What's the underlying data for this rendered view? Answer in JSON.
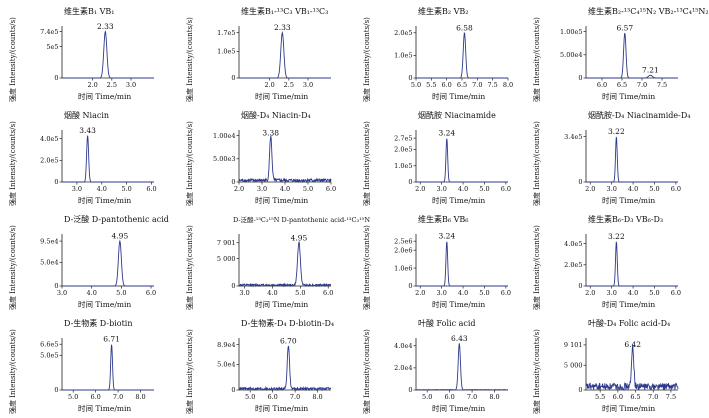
{
  "figure": {
    "ylabel": "强度 Intensity/(counts/s)",
    "xlabel": "时间 Time/min"
  },
  "chart_data": [
    {
      "type": "line",
      "title": "维生素B₁ VB₁",
      "xlim": [
        1.2,
        3.6
      ],
      "ylim": [
        0,
        8.3
      ],
      "y_scale_label": "",
      "x_ticks": [
        {
          "v": 2.0,
          "t": "2.0"
        },
        {
          "v": 2.5,
          "t": "2.5"
        },
        {
          "v": 3.0,
          "t": "3.0"
        }
      ],
      "y_ticks": [
        {
          "v": 0,
          "t": "0"
        },
        {
          "v": 5,
          "t": "5e5"
        },
        {
          "v": 7.4,
          "t": "7.4e5"
        }
      ],
      "peaks": [
        {
          "x": 2.33,
          "label": "2.33",
          "height": 7.4,
          "width": 0.04
        }
      ],
      "noise": 0
    },
    {
      "type": "line",
      "title": "维生素B₁-¹³C₃ VB₁-¹³C₃",
      "xlim": [
        1.2,
        3.6
      ],
      "ylim": [
        0,
        1.95
      ],
      "x_ticks": [
        {
          "v": 2.0,
          "t": "2.0"
        },
        {
          "v": 2.5,
          "t": "2.5"
        },
        {
          "v": 3.0,
          "t": "3.0"
        }
      ],
      "y_ticks": [
        {
          "v": 0,
          "t": "0"
        },
        {
          "v": 1.0,
          "t": "1.0e5"
        },
        {
          "v": 1.7,
          "t": "1.7e5"
        }
      ],
      "peaks": [
        {
          "x": 2.33,
          "label": "2.33",
          "height": 1.7,
          "width": 0.04
        }
      ],
      "noise": 0
    },
    {
      "type": "line",
      "title": "维生素B₂ VB₂",
      "xlim": [
        5.0,
        8.0
      ],
      "ylim": [
        0,
        2.3
      ],
      "x_ticks": [
        {
          "v": 5.0,
          "t": "5.0"
        },
        {
          "v": 5.5,
          "t": "5.5"
        },
        {
          "v": 6.0,
          "t": "6.0"
        },
        {
          "v": 6.5,
          "t": "6.5"
        },
        {
          "v": 7.0,
          "t": "7.0"
        },
        {
          "v": 7.5,
          "t": "7.5"
        },
        {
          "v": 8.0,
          "t": "8.0"
        }
      ],
      "y_ticks": [
        {
          "v": 0,
          "t": "0"
        },
        {
          "v": 1.0,
          "t": "1.0e5"
        },
        {
          "v": 2.0,
          "t": "2.0e5"
        }
      ],
      "peaks": [
        {
          "x": 6.58,
          "label": "6.58",
          "height": 2.0,
          "width": 0.04
        }
      ],
      "noise": 0
    },
    {
      "type": "line",
      "title": "维生素B₂-¹³C₄¹⁵N₂ VB₂-¹³C₄¹⁵N₂",
      "xlim": [
        5.6,
        7.9
      ],
      "ylim": [
        0,
        1.12
      ],
      "x_ticks": [
        {
          "v": 6.0,
          "t": "6.0"
        },
        {
          "v": 6.5,
          "t": "6.5"
        },
        {
          "v": 7.0,
          "t": "7.0"
        },
        {
          "v": 7.5,
          "t": "7.5"
        }
      ],
      "y_ticks": [
        {
          "v": 0,
          "t": "0"
        },
        {
          "v": 0.5,
          "t": "5.00e4"
        },
        {
          "v": 1.0,
          "t": "1.00e5"
        }
      ],
      "peaks": [
        {
          "x": 6.57,
          "label": "6.57",
          "height": 0.97,
          "width": 0.03
        },
        {
          "x": 7.21,
          "label": "7.21",
          "height": 0.06,
          "width": 0.05
        }
      ],
      "noise": 0
    },
    {
      "type": "line",
      "title": "烟酸 Niacin",
      "xlim": [
        2.4,
        6.1
      ],
      "ylim": [
        0,
        4.8
      ],
      "x_ticks": [
        {
          "v": 3.0,
          "t": "3.0"
        },
        {
          "v": 4.0,
          "t": "4.0"
        },
        {
          "v": 5.0,
          "t": "5.0"
        },
        {
          "v": 6.0,
          "t": "6.0"
        }
      ],
      "y_ticks": [
        {
          "v": 0,
          "t": "0"
        },
        {
          "v": 2.0,
          "t": "2.0e5"
        },
        {
          "v": 4.0,
          "t": "4.0e5"
        }
      ],
      "peaks": [
        {
          "x": 3.43,
          "label": "3.43",
          "height": 4.3,
          "width": 0.04
        }
      ],
      "noise": 0
    },
    {
      "type": "line",
      "title": "烟酸-D₄ Niacin-D₄",
      "xlim": [
        2.0,
        6.0
      ],
      "ylim": [
        0,
        1.12
      ],
      "x_ticks": [
        {
          "v": 2.0,
          "t": "2.0"
        },
        {
          "v": 3.0,
          "t": "3.0"
        },
        {
          "v": 4.0,
          "t": "4.0"
        },
        {
          "v": 5.0,
          "t": "5.0"
        },
        {
          "v": 6.0,
          "t": "6.0"
        }
      ],
      "y_ticks": [
        {
          "v": 0,
          "t": "0"
        },
        {
          "v": 0.5,
          "t": "5.00e3"
        },
        {
          "v": 1.0,
          "t": "1.00e4"
        }
      ],
      "peaks": [
        {
          "x": 3.38,
          "label": "3.38",
          "height": 0.95,
          "width": 0.05
        }
      ],
      "noise": 0.05
    },
    {
      "type": "line",
      "title": "烟酰胺 Niacinamide",
      "xlim": [
        1.8,
        6.1
      ],
      "ylim": [
        0,
        3.2
      ],
      "x_ticks": [
        {
          "v": 2.0,
          "t": "2.0"
        },
        {
          "v": 3.0,
          "t": "3.0"
        },
        {
          "v": 4.0,
          "t": "4.0"
        },
        {
          "v": 5.0,
          "t": "5.0"
        },
        {
          "v": 6.0,
          "t": "6.0"
        }
      ],
      "y_ticks": [
        {
          "v": 0,
          "t": "0"
        },
        {
          "v": 1.0,
          "t": "1.0e5"
        },
        {
          "v": 2.0,
          "t": "2.0e5"
        },
        {
          "v": 2.7,
          "t": "2.7e5"
        }
      ],
      "peaks": [
        {
          "x": 3.24,
          "label": "3.24",
          "height": 2.7,
          "width": 0.04
        }
      ],
      "noise": 0
    },
    {
      "type": "line",
      "title": "烟酰胺-D₄ Niacinamide-D₄",
      "xlim": [
        1.8,
        6.1
      ],
      "ylim": [
        0,
        3.9
      ],
      "x_ticks": [
        {
          "v": 2.0,
          "t": "2.0"
        },
        {
          "v": 3.0,
          "t": "3.0"
        },
        {
          "v": 4.0,
          "t": "4.0"
        },
        {
          "v": 5.0,
          "t": "5.0"
        },
        {
          "v": 6.0,
          "t": "6.0"
        }
      ],
      "y_ticks": [
        {
          "v": 0,
          "t": "0"
        },
        {
          "v": 3.4,
          "t": "3.4e5"
        }
      ],
      "peaks": [
        {
          "x": 3.22,
          "label": "3.22",
          "height": 3.4,
          "width": 0.04
        }
      ],
      "noise": 0
    },
    {
      "type": "line",
      "title": "D-泛酸 D-pantothenic acid",
      "xlim": [
        3.0,
        6.1
      ],
      "ylim": [
        0,
        11.0
      ],
      "x_ticks": [
        {
          "v": 3.0,
          "t": "3.0"
        },
        {
          "v": 4.0,
          "t": "4.0"
        },
        {
          "v": 5.0,
          "t": "5.0"
        },
        {
          "v": 6.0,
          "t": "6.0"
        }
      ],
      "y_ticks": [
        {
          "v": 0,
          "t": "0"
        },
        {
          "v": 5.0,
          "t": "5.0e4"
        },
        {
          "v": 9.5,
          "t": "9.5e4"
        }
      ],
      "peaks": [
        {
          "x": 4.95,
          "label": "4.95",
          "height": 9.5,
          "width": 0.05
        }
      ],
      "noise": 0
    },
    {
      "type": "line",
      "title": "D-泛酸-¹³C₃¹⁵N D-pantothenic acid-¹³C₃¹⁵N",
      "xlim": [
        2.8,
        6.1
      ],
      "ylim": [
        0,
        9.5
      ],
      "x_ticks": [
        {
          "v": 3.0,
          "t": "3.0"
        },
        {
          "v": 4.0,
          "t": "4.0"
        },
        {
          "v": 5.0,
          "t": "5.0"
        },
        {
          "v": 6.0,
          "t": "6.0"
        }
      ],
      "y_ticks": [
        {
          "v": 0,
          "t": "0"
        },
        {
          "v": 5.0,
          "t": "5 000"
        },
        {
          "v": 7.901,
          "t": "7 901"
        }
      ],
      "peaks": [
        {
          "x": 4.95,
          "label": "4.95",
          "height": 7.9,
          "width": 0.05
        }
      ],
      "noise": 0.25
    },
    {
      "type": "line",
      "title": "维生素B₆ VB₆",
      "xlim": [
        1.8,
        6.1
      ],
      "ylim": [
        0,
        2.9
      ],
      "x_ticks": [
        {
          "v": 2.0,
          "t": "2.0"
        },
        {
          "v": 3.0,
          "t": "3.0"
        },
        {
          "v": 4.0,
          "t": "4.0"
        },
        {
          "v": 5.0,
          "t": "5.0"
        },
        {
          "v": 6.0,
          "t": "6.0"
        }
      ],
      "y_ticks": [
        {
          "v": 0,
          "t": "0"
        },
        {
          "v": 1.0,
          "t": "1.0e6"
        },
        {
          "v": 2.0,
          "t": "2.0e6"
        },
        {
          "v": 2.5,
          "t": "2.5e6"
        }
      ],
      "peaks": [
        {
          "x": 3.24,
          "label": "3.24",
          "height": 2.5,
          "width": 0.04
        }
      ],
      "noise": 0
    },
    {
      "type": "line",
      "title": "维生素B₆-D₃ VB₆-D₃",
      "xlim": [
        1.8,
        6.1
      ],
      "ylim": [
        0,
        4.9
      ],
      "x_ticks": [
        {
          "v": 2.0,
          "t": "2.0"
        },
        {
          "v": 3.0,
          "t": "3.0"
        },
        {
          "v": 4.0,
          "t": "4.0"
        },
        {
          "v": 5.0,
          "t": "5.0"
        },
        {
          "v": 6.0,
          "t": "6.0"
        }
      ],
      "y_ticks": [
        {
          "v": 0,
          "t": "0"
        },
        {
          "v": 2.0,
          "t": "2.0e5"
        },
        {
          "v": 4.0,
          "t": "4.0e5"
        }
      ],
      "peaks": [
        {
          "x": 3.22,
          "label": "3.22",
          "height": 4.2,
          "width": 0.04
        }
      ],
      "noise": 0
    },
    {
      "type": "line",
      "title": "D-生物素 D-biotin",
      "xlim": [
        4.5,
        8.6
      ],
      "ylim": [
        0,
        7.5
      ],
      "x_ticks": [
        {
          "v": 5.0,
          "t": "5.0"
        },
        {
          "v": 6.0,
          "t": "6.0"
        },
        {
          "v": 7.0,
          "t": "7.0"
        },
        {
          "v": 8.0,
          "t": "8.0"
        }
      ],
      "y_ticks": [
        {
          "v": 0,
          "t": "0"
        },
        {
          "v": 5.0,
          "t": "5.0e5"
        },
        {
          "v": 6.6,
          "t": "6.6e5"
        }
      ],
      "peaks": [
        {
          "x": 6.71,
          "label": "6.71",
          "height": 6.6,
          "width": 0.04
        }
      ],
      "noise": 0
    },
    {
      "type": "line",
      "title": "D-生物素-D₄ D-biotin-D₄",
      "xlim": [
        4.5,
        8.6
      ],
      "ylim": [
        0,
        10.2
      ],
      "x_ticks": [
        {
          "v": 5.0,
          "t": "5.0"
        },
        {
          "v": 6.0,
          "t": "6.0"
        },
        {
          "v": 7.0,
          "t": "7.0"
        },
        {
          "v": 8.0,
          "t": "8.0"
        }
      ],
      "y_ticks": [
        {
          "v": 0,
          "t": "0"
        },
        {
          "v": 5.0,
          "t": "5.0e4"
        },
        {
          "v": 8.9,
          "t": "8.9e4"
        }
      ],
      "peaks": [
        {
          "x": 6.7,
          "label": "6.70",
          "height": 8.6,
          "width": 0.05
        }
      ],
      "noise": 0.35
    },
    {
      "type": "line",
      "title": "叶酸 Folic acid",
      "xlim": [
        4.5,
        8.6
      ],
      "ylim": [
        0,
        4.7
      ],
      "x_ticks": [
        {
          "v": 5.0,
          "t": "5.0"
        },
        {
          "v": 6.0,
          "t": "6.0"
        },
        {
          "v": 7.0,
          "t": "7.0"
        },
        {
          "v": 8.0,
          "t": "8.0"
        }
      ],
      "y_ticks": [
        {
          "v": 0,
          "t": "0"
        },
        {
          "v": 2.0,
          "t": "2.0e4"
        },
        {
          "v": 4.0,
          "t": "4.0e4"
        }
      ],
      "peaks": [
        {
          "x": 6.43,
          "label": "6.43",
          "height": 4.2,
          "width": 0.05
        }
      ],
      "noise": 0.03
    },
    {
      "type": "line",
      "title": "叶酸-D₄ Folic acid-D₄",
      "xlim": [
        5.1,
        7.7
      ],
      "ylim": [
        0,
        10.5
      ],
      "x_ticks": [
        {
          "v": 5.5,
          "t": "5.5"
        },
        {
          "v": 6.0,
          "t": "6.0"
        },
        {
          "v": 6.5,
          "t": "6.5"
        },
        {
          "v": 7.0,
          "t": "7.0"
        },
        {
          "v": 7.5,
          "t": "7.5"
        }
      ],
      "y_ticks": [
        {
          "v": 0,
          "t": "0"
        },
        {
          "v": 5.0,
          "t": "5 000"
        },
        {
          "v": 9.101,
          "t": "9 101"
        }
      ],
      "peaks": [
        {
          "x": 6.42,
          "label": "6.42",
          "height": 8.2,
          "width": 0.03
        }
      ],
      "noise": 1.0
    }
  ],
  "style": {
    "trace_color": "#2d3a8c",
    "axis_color": "#222222"
  }
}
